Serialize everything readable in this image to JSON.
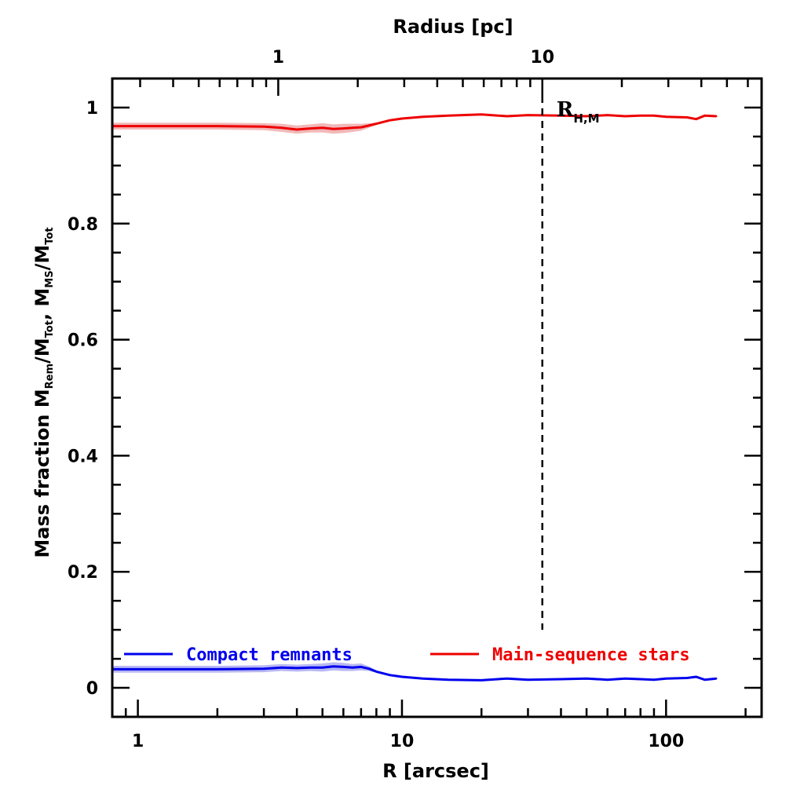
{
  "chart_data": {
    "type": "line",
    "xlabel": "R [arcsec]",
    "ylabel_parts": [
      "Mass fraction   M",
      "Rem",
      "/M",
      "Tot",
      ",  M",
      "MS",
      "/M",
      "Tot"
    ],
    "top_xlabel": "Radius [pc]",
    "xscale": "log",
    "xlim": [
      0.8,
      230
    ],
    "ylim": [
      -0.05,
      1.05
    ],
    "x_ticks": [
      {
        "value": 1,
        "label": "1"
      },
      {
        "value": 10,
        "label": "10"
      },
      {
        "value": 100,
        "label": "100"
      }
    ],
    "y_ticks": [
      {
        "value": 0,
        "label": "0"
      },
      {
        "value": 0.2,
        "label": "0.2"
      },
      {
        "value": 0.4,
        "label": "0.4"
      },
      {
        "value": 0.6,
        "label": "0.6"
      },
      {
        "value": 0.8,
        "label": "0.8"
      },
      {
        "value": 1,
        "label": "1"
      }
    ],
    "top_ticks_arcsec": [
      {
        "value": 3.4,
        "label": "1"
      },
      {
        "value": 34,
        "label": "10"
      }
    ],
    "annotation": {
      "text": "R",
      "sub": "H,M",
      "x": 34
    },
    "series": [
      {
        "name": "Compact remnants",
        "color": "#0000ee",
        "band_color": "#b8b8f2",
        "x": [
          0.8,
          1,
          2,
          3,
          3.5,
          4,
          4.5,
          5,
          5.5,
          6,
          6.5,
          7,
          7.5,
          8,
          9,
          10,
          12,
          15,
          20,
          25,
          30,
          40,
          50,
          60,
          70,
          80,
          90,
          100,
          120,
          130,
          140,
          155
        ],
        "y": [
          0.032,
          0.032,
          0.032,
          0.033,
          0.035,
          0.034,
          0.035,
          0.035,
          0.037,
          0.036,
          0.035,
          0.036,
          0.033,
          0.028,
          0.022,
          0.019,
          0.016,
          0.014,
          0.013,
          0.016,
          0.014,
          0.015,
          0.016,
          0.014,
          0.016,
          0.015,
          0.014,
          0.016,
          0.017,
          0.019,
          0.014,
          0.016
        ],
        "band": [
          0.006,
          0.006,
          0.006,
          0.006,
          0.006,
          0.006,
          0.006,
          0.007,
          0.007,
          0.007,
          0.006,
          0.006,
          0.004,
          0.002,
          0.001,
          0.001,
          0.001,
          0.001,
          0.001,
          0.001,
          0.001,
          0.001,
          0.001,
          0.001,
          0.001,
          0.001,
          0.001,
          0.001,
          0.001,
          0.001,
          0.001,
          0.001
        ]
      },
      {
        "name": "Main-sequence stars",
        "color": "#ee0000",
        "band_color": "#f2b8b8",
        "x": [
          0.8,
          1,
          2,
          3,
          3.5,
          4,
          4.5,
          5,
          5.5,
          6,
          6.5,
          7,
          7.5,
          8,
          9,
          10,
          12,
          15,
          20,
          25,
          30,
          40,
          50,
          60,
          70,
          80,
          90,
          100,
          120,
          130,
          140,
          155
        ],
        "y": [
          0.968,
          0.968,
          0.968,
          0.967,
          0.965,
          0.962,
          0.964,
          0.965,
          0.963,
          0.964,
          0.965,
          0.966,
          0.969,
          0.972,
          0.978,
          0.981,
          0.984,
          0.986,
          0.988,
          0.985,
          0.987,
          0.986,
          0.985,
          0.987,
          0.985,
          0.986,
          0.986,
          0.984,
          0.983,
          0.98,
          0.986,
          0.985
        ],
        "band": [
          0.006,
          0.006,
          0.006,
          0.006,
          0.007,
          0.007,
          0.007,
          0.008,
          0.008,
          0.008,
          0.007,
          0.006,
          0.004,
          0.002,
          0.001,
          0.001,
          0.001,
          0.001,
          0.001,
          0.001,
          0.001,
          0.001,
          0.001,
          0.001,
          0.001,
          0.001,
          0.001,
          0.001,
          0.001,
          0.001,
          0.001,
          0.001
        ]
      }
    ],
    "legend_location": "bottom"
  }
}
